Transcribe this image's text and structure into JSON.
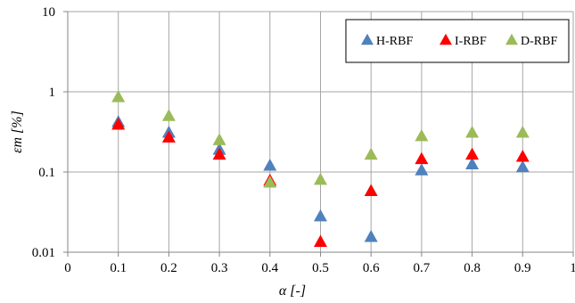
{
  "chart_data": {
    "type": "scatter",
    "xlabel": "α [-]",
    "ylabel": "εm [%]",
    "xlim": [
      0,
      1
    ],
    "ylim": [
      0.01,
      10
    ],
    "yscale": "log",
    "grid": true,
    "legend_position": "top-right",
    "x_ticks": [
      "0",
      "0.1",
      "0.2",
      "0.3",
      "0.4",
      "0.5",
      "0.6",
      "0.7",
      "0.8",
      "0.9",
      "1"
    ],
    "y_ticks": [
      "0.01",
      "0.1",
      "1",
      "10"
    ],
    "x": [
      0.1,
      0.2,
      0.3,
      0.4,
      0.5,
      0.6,
      0.7,
      0.8,
      0.9
    ],
    "series": [
      {
        "name": "H-RBF",
        "color": "#4F81BD",
        "marker": "triangle",
        "values": [
          0.42,
          0.31,
          0.19,
          0.12,
          0.028,
          0.0155,
          0.105,
          0.125,
          0.115
        ]
      },
      {
        "name": "I-RBF",
        "color": "#FF0000",
        "marker": "triangle",
        "values": [
          0.39,
          0.27,
          0.165,
          0.078,
          0.0135,
          0.058,
          0.145,
          0.165,
          0.155
        ]
      },
      {
        "name": "D-RBF",
        "color": "#9BBB59",
        "marker": "triangle",
        "values": [
          0.86,
          0.5,
          0.25,
          0.074,
          0.08,
          0.165,
          0.28,
          0.31,
          0.31
        ]
      }
    ]
  }
}
